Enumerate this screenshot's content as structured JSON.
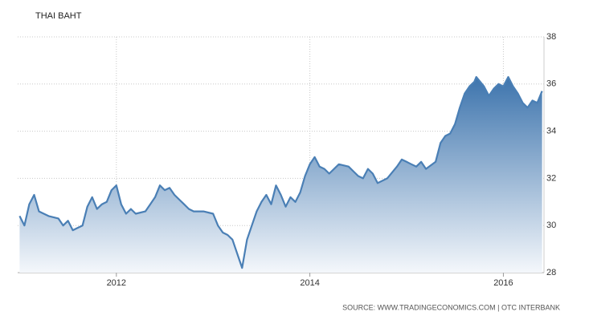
{
  "chart_data": {
    "type": "area",
    "title": "THAI BAHT",
    "source": "SOURCE: WWW.TRADINGECONOMICS.COM | OTC INTERBANK",
    "color": "#4a7fb5",
    "grid": true,
    "xlim": [
      2010.98,
      2016.42
    ],
    "xticks": [
      2012,
      2014,
      2016
    ],
    "ylim": [
      28,
      38
    ],
    "yticks": [
      28,
      30,
      32,
      34,
      36,
      38
    ],
    "x": [
      2011.0,
      2011.05,
      2011.1,
      2011.15,
      2011.2,
      2011.3,
      2011.4,
      2011.45,
      2011.5,
      2011.55,
      2011.6,
      2011.65,
      2011.7,
      2011.75,
      2011.8,
      2011.85,
      2011.9,
      2011.95,
      2012.0,
      2012.05,
      2012.1,
      2012.15,
      2012.2,
      2012.3,
      2012.35,
      2012.4,
      2012.45,
      2012.5,
      2012.55,
      2012.6,
      2012.65,
      2012.7,
      2012.75,
      2012.8,
      2012.9,
      2013.0,
      2013.05,
      2013.1,
      2013.15,
      2013.2,
      2013.25,
      2013.3,
      2013.35,
      2013.4,
      2013.45,
      2013.5,
      2013.55,
      2013.6,
      2013.65,
      2013.7,
      2013.75,
      2013.8,
      2013.85,
      2013.9,
      2013.95,
      2014.0,
      2014.05,
      2014.1,
      2014.15,
      2014.2,
      2014.3,
      2014.4,
      2014.45,
      2014.5,
      2014.55,
      2014.6,
      2014.65,
      2014.7,
      2014.8,
      2014.9,
      2014.95,
      2015.0,
      2015.05,
      2015.1,
      2015.15,
      2015.2,
      2015.3,
      2015.35,
      2015.4,
      2015.45,
      2015.5,
      2015.55,
      2015.6,
      2015.65,
      2015.7,
      2015.72,
      2015.8,
      2015.85,
      2015.9,
      2015.95,
      2016.0,
      2016.05,
      2016.1,
      2016.15,
      2016.2,
      2016.25,
      2016.3,
      2016.35,
      2016.4
    ],
    "values": [
      30.4,
      30.0,
      30.9,
      31.3,
      30.6,
      30.4,
      30.3,
      30.0,
      30.2,
      29.8,
      29.9,
      30.0,
      30.8,
      31.2,
      30.7,
      30.9,
      31.0,
      31.5,
      31.7,
      30.9,
      30.5,
      30.7,
      30.5,
      30.6,
      30.9,
      31.2,
      31.7,
      31.5,
      31.6,
      31.3,
      31.1,
      30.9,
      30.7,
      30.6,
      30.6,
      30.5,
      30.0,
      29.7,
      29.6,
      29.4,
      28.8,
      28.2,
      29.4,
      30.0,
      30.6,
      31.0,
      31.3,
      30.9,
      31.7,
      31.3,
      30.8,
      31.2,
      31.0,
      31.4,
      32.1,
      32.6,
      32.9,
      32.5,
      32.4,
      32.2,
      32.6,
      32.5,
      32.3,
      32.1,
      32.0,
      32.4,
      32.2,
      31.8,
      32.0,
      32.5,
      32.8,
      32.7,
      32.6,
      32.5,
      32.7,
      32.4,
      32.7,
      33.5,
      33.8,
      33.9,
      34.3,
      35.0,
      35.6,
      35.9,
      36.1,
      36.3,
      35.9,
      35.5,
      35.8,
      36.0,
      35.9,
      36.3,
      35.9,
      35.6,
      35.2,
      35.0,
      35.3,
      35.2,
      35.7
    ]
  }
}
